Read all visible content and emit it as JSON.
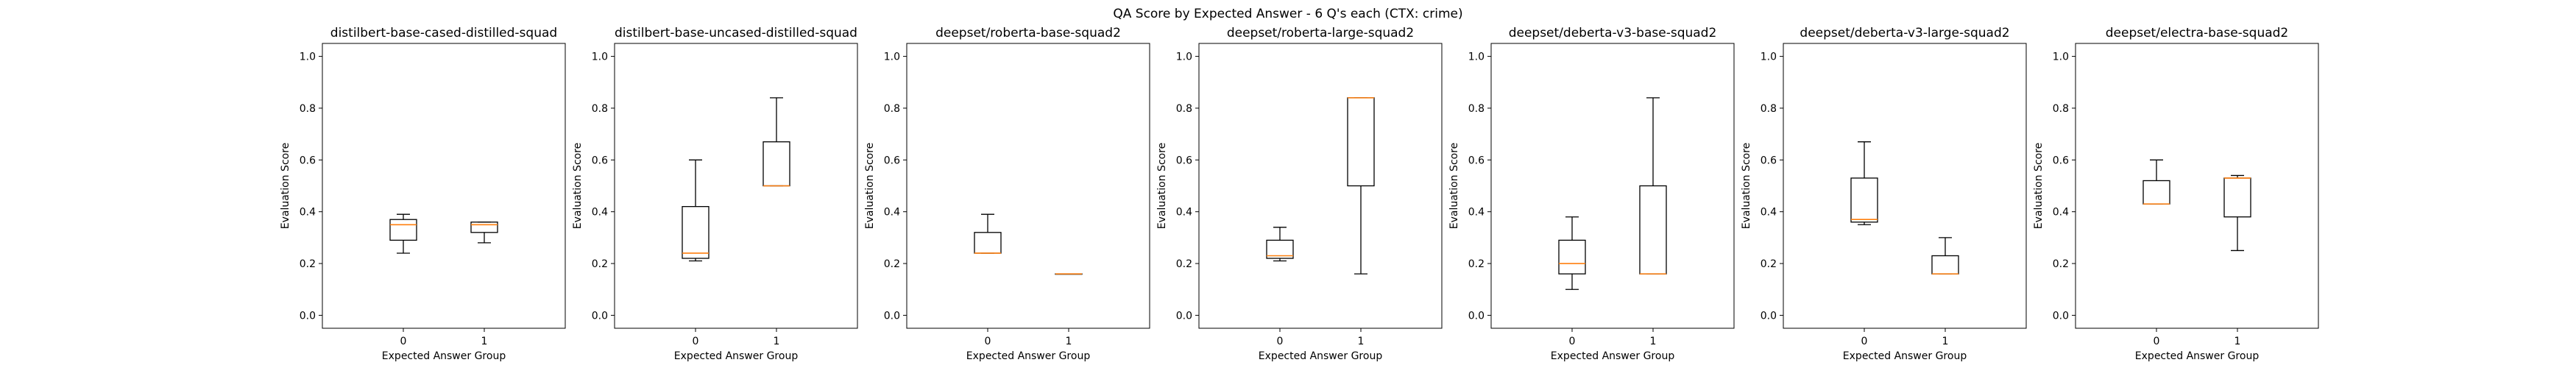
{
  "figure": {
    "suptitle": "QA Score by Expected Answer - 6 Q's each (CTX: crime)"
  },
  "style": {
    "box_color": "#000000",
    "median_color": "#ff7f0e",
    "frame_color": "#000000"
  },
  "chart_data": [
    {
      "type": "box",
      "title": "distilbert-base-cased-distilled-squad",
      "xlabel": "Expected Answer Group",
      "ylabel": "Evaluation Score",
      "categories": [
        "0",
        "1"
      ],
      "ylim": [
        -0.05,
        1.05
      ],
      "yticks": [
        "0.0",
        "0.2",
        "0.4",
        "0.6",
        "0.8",
        "1.0"
      ],
      "boxes": [
        {
          "whislo": 0.24,
          "q1": 0.29,
          "med": 0.35,
          "q3": 0.37,
          "whishi": 0.39
        },
        {
          "whislo": 0.28,
          "q1": 0.32,
          "med": 0.35,
          "q3": 0.36,
          "whishi": 0.36
        }
      ]
    },
    {
      "type": "box",
      "title": "distilbert-base-uncased-distilled-squad",
      "xlabel": "Expected Answer Group",
      "ylabel": "Evaluation Score",
      "categories": [
        "0",
        "1"
      ],
      "ylim": [
        -0.05,
        1.05
      ],
      "yticks": [
        "0.0",
        "0.2",
        "0.4",
        "0.6",
        "0.8",
        "1.0"
      ],
      "boxes": [
        {
          "whislo": 0.21,
          "q1": 0.22,
          "med": 0.24,
          "q3": 0.42,
          "whishi": 0.6
        },
        {
          "whislo": 0.5,
          "q1": 0.5,
          "med": 0.5,
          "q3": 0.67,
          "whishi": 0.84
        }
      ]
    },
    {
      "type": "box",
      "title": "deepset/roberta-base-squad2",
      "xlabel": "Expected Answer Group",
      "ylabel": "Evaluation Score",
      "categories": [
        "0",
        "1"
      ],
      "ylim": [
        -0.05,
        1.05
      ],
      "yticks": [
        "0.0",
        "0.2",
        "0.4",
        "0.6",
        "0.8",
        "1.0"
      ],
      "boxes": [
        {
          "whislo": 0.24,
          "q1": 0.24,
          "med": 0.24,
          "q3": 0.32,
          "whishi": 0.39
        },
        {
          "whislo": 0.16,
          "q1": 0.16,
          "med": 0.16,
          "q3": 0.16,
          "whishi": 0.16
        }
      ]
    },
    {
      "type": "box",
      "title": "deepset/roberta-large-squad2",
      "xlabel": "Expected Answer Group",
      "ylabel": "Evaluation Score",
      "categories": [
        "0",
        "1"
      ],
      "ylim": [
        -0.05,
        1.05
      ],
      "yticks": [
        "0.0",
        "0.2",
        "0.4",
        "0.6",
        "0.8",
        "1.0"
      ],
      "boxes": [
        {
          "whislo": 0.21,
          "q1": 0.22,
          "med": 0.23,
          "q3": 0.29,
          "whishi": 0.34
        },
        {
          "whislo": 0.16,
          "q1": 0.5,
          "med": 0.84,
          "q3": 0.84,
          "whishi": 0.84
        }
      ]
    },
    {
      "type": "box",
      "title": "deepset/deberta-v3-base-squad2",
      "xlabel": "Expected Answer Group",
      "ylabel": "Evaluation Score",
      "categories": [
        "0",
        "1"
      ],
      "ylim": [
        -0.05,
        1.05
      ],
      "yticks": [
        "0.0",
        "0.2",
        "0.4",
        "0.6",
        "0.8",
        "1.0"
      ],
      "boxes": [
        {
          "whislo": 0.1,
          "q1": 0.16,
          "med": 0.2,
          "q3": 0.29,
          "whishi": 0.38
        },
        {
          "whislo": 0.16,
          "q1": 0.16,
          "med": 0.16,
          "q3": 0.5,
          "whishi": 0.84
        }
      ]
    },
    {
      "type": "box",
      "title": "deepset/deberta-v3-large-squad2",
      "xlabel": "Expected Answer Group",
      "ylabel": "Evaluation Score",
      "categories": [
        "0",
        "1"
      ],
      "ylim": [
        -0.05,
        1.05
      ],
      "yticks": [
        "0.0",
        "0.2",
        "0.4",
        "0.6",
        "0.8",
        "1.0"
      ],
      "boxes": [
        {
          "whislo": 0.35,
          "q1": 0.36,
          "med": 0.37,
          "q3": 0.53,
          "whishi": 0.67
        },
        {
          "whislo": 0.16,
          "q1": 0.16,
          "med": 0.16,
          "q3": 0.23,
          "whishi": 0.3
        }
      ]
    },
    {
      "type": "box",
      "title": "deepset/electra-base-squad2",
      "xlabel": "Expected Answer Group",
      "ylabel": "Evaluation Score",
      "categories": [
        "0",
        "1"
      ],
      "ylim": [
        -0.05,
        1.05
      ],
      "yticks": [
        "0.0",
        "0.2",
        "0.4",
        "0.6",
        "0.8",
        "1.0"
      ],
      "boxes": [
        {
          "whislo": 0.43,
          "q1": 0.43,
          "med": 0.43,
          "q3": 0.52,
          "whishi": 0.6
        },
        {
          "whislo": 0.25,
          "q1": 0.38,
          "med": 0.53,
          "q3": 0.53,
          "whishi": 0.54
        }
      ]
    }
  ]
}
